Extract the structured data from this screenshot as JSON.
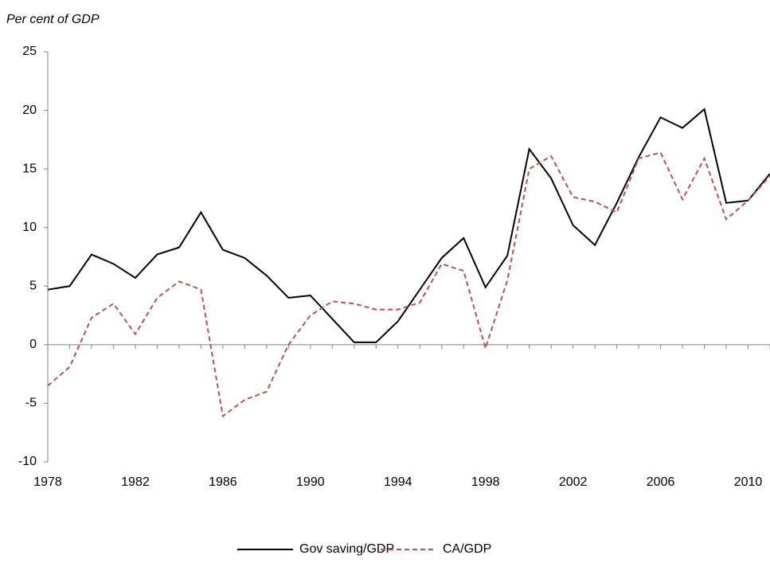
{
  "chart_data": {
    "type": "line",
    "ylabel": "Per cent of GDP",
    "x": [
      1978,
      1979,
      1980,
      1981,
      1982,
      1983,
      1984,
      1985,
      1986,
      1987,
      1988,
      1989,
      1990,
      1991,
      1992,
      1993,
      1994,
      1995,
      1996,
      1997,
      1998,
      1999,
      2000,
      2001,
      2002,
      2003,
      2004,
      2005,
      2006,
      2007,
      2008,
      2009,
      2010,
      2011
    ],
    "series": [
      {
        "name": "Gov saving/GDP",
        "color": "#000000",
        "dash": false,
        "values": [
          4.7,
          5.0,
          7.7,
          6.9,
          5.7,
          7.7,
          8.3,
          11.3,
          8.1,
          7.4,
          5.9,
          4.0,
          4.2,
          2.2,
          0.2,
          0.2,
          2.0,
          4.7,
          7.4,
          9.1,
          4.9,
          7.6,
          16.7,
          14.2,
          10.2,
          8.5,
          12.1,
          16.0,
          19.4,
          18.5,
          20.1,
          12.1,
          12.3,
          14.6
        ]
      },
      {
        "name": "CA/GDP",
        "color": "#c0504d",
        "dash": true,
        "values": [
          -3.5,
          -1.9,
          2.3,
          3.5,
          0.9,
          4.0,
          5.4,
          4.7,
          -6.1,
          -4.7,
          -4.0,
          0.0,
          2.5,
          3.7,
          3.5,
          3.0,
          3.0,
          3.6,
          6.9,
          6.3,
          -0.3,
          5.5,
          15.0,
          16.1,
          12.6,
          12.2,
          11.3,
          15.9,
          16.4,
          12.4,
          15.9,
          10.7,
          12.3,
          14.4
        ]
      }
    ],
    "xlim": [
      1978,
      2011
    ],
    "xticks": [
      1978,
      1982,
      1986,
      1990,
      1994,
      1998,
      2002,
      2006,
      2010
    ],
    "ylim": [
      -10,
      25
    ],
    "yticks": [
      -10,
      -5,
      0,
      5,
      10,
      15,
      20,
      25
    ],
    "legend": "bottom"
  }
}
